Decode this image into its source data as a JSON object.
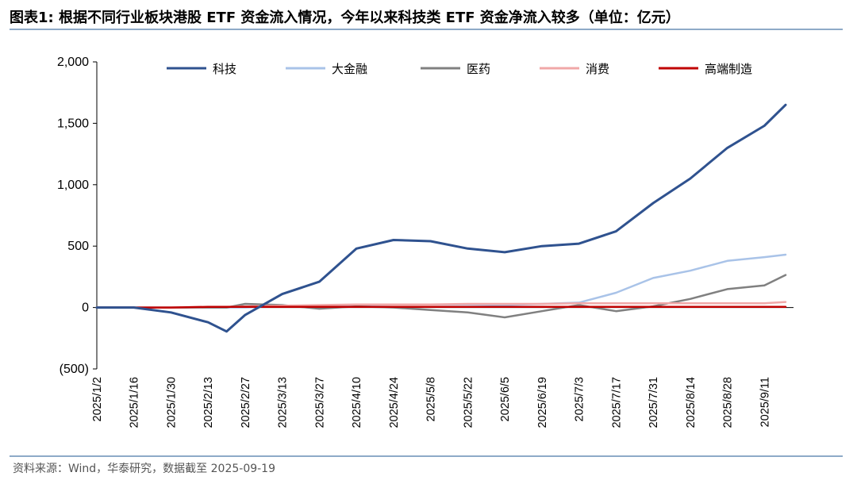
{
  "title": "图表1:  根据不同行业板块港股 ETF 资金流入情况，今年以来科技类 ETF 资金净流入较多（单位：亿元）",
  "source": "资料来源：Wind，华泰研究，数据截至 2025-09-19",
  "chart_data": {
    "type": "line",
    "title": "根据不同行业板块港股 ETF 资金流入情况，今年以来科技类 ETF 资金净流入较多（单位：亿元）",
    "xlabel": "",
    "ylabel": "",
    "ylim": [
      -500,
      2000
    ],
    "yticks": [
      -500,
      0,
      500,
      1000,
      1500,
      2000
    ],
    "ytick_labels": [
      "(500)",
      "0",
      "500",
      "1,000",
      "1,500",
      "2,000"
    ],
    "legend_position": "top",
    "grid": false,
    "x_tick_labels": [
      "2025/1/2",
      "2025/1/16",
      "2025/1/30",
      "2025/2/13",
      "2025/2/27",
      "2025/3/13",
      "2025/3/27",
      "2025/4/10",
      "2025/4/24",
      "2025/5/8",
      "2025/5/22",
      "2025/6/5",
      "2025/6/19",
      "2025/7/3",
      "2025/7/17",
      "2025/7/31",
      "2025/8/14",
      "2025/8/28",
      "2025/9/11"
    ],
    "x": [
      "2025/1/2",
      "2025/1/16",
      "2025/1/30",
      "2025/2/13",
      "2025/2/20",
      "2025/2/27",
      "2025/3/13",
      "2025/3/27",
      "2025/4/10",
      "2025/4/24",
      "2025/5/8",
      "2025/5/22",
      "2025/6/5",
      "2025/6/19",
      "2025/7/3",
      "2025/7/17",
      "2025/7/31",
      "2025/8/14",
      "2025/8/28",
      "2025/9/11",
      "2025/9/19"
    ],
    "series": [
      {
        "name": "科技",
        "color": "#2f528f",
        "values": [
          0,
          0,
          -40,
          -120,
          -195,
          -60,
          110,
          210,
          480,
          550,
          540,
          480,
          450,
          500,
          520,
          620,
          850,
          1050,
          1300,
          1480,
          1650
        ]
      },
      {
        "name": "大金融",
        "color": "#a9c3e8",
        "values": [
          0,
          0,
          0,
          0,
          0,
          0,
          10,
          15,
          20,
          25,
          25,
          25,
          20,
          30,
          40,
          120,
          240,
          300,
          380,
          410,
          430
        ]
      },
      {
        "name": "医药",
        "color": "#808080",
        "values": [
          0,
          0,
          0,
          0,
          0,
          30,
          20,
          -10,
          10,
          0,
          -20,
          -40,
          -80,
          -30,
          20,
          -30,
          10,
          70,
          150,
          180,
          265
        ]
      },
      {
        "name": "消费",
        "color": "#f0a8a8",
        "values": [
          0,
          0,
          0,
          5,
          5,
          10,
          15,
          20,
          25,
          25,
          25,
          30,
          30,
          30,
          35,
          35,
          35,
          35,
          35,
          35,
          45
        ]
      },
      {
        "name": "高端制造",
        "color": "#c00000",
        "values": [
          0,
          0,
          0,
          5,
          5,
          5,
          5,
          5,
          5,
          5,
          5,
          5,
          5,
          5,
          5,
          5,
          5,
          5,
          5,
          5,
          5
        ]
      }
    ]
  }
}
